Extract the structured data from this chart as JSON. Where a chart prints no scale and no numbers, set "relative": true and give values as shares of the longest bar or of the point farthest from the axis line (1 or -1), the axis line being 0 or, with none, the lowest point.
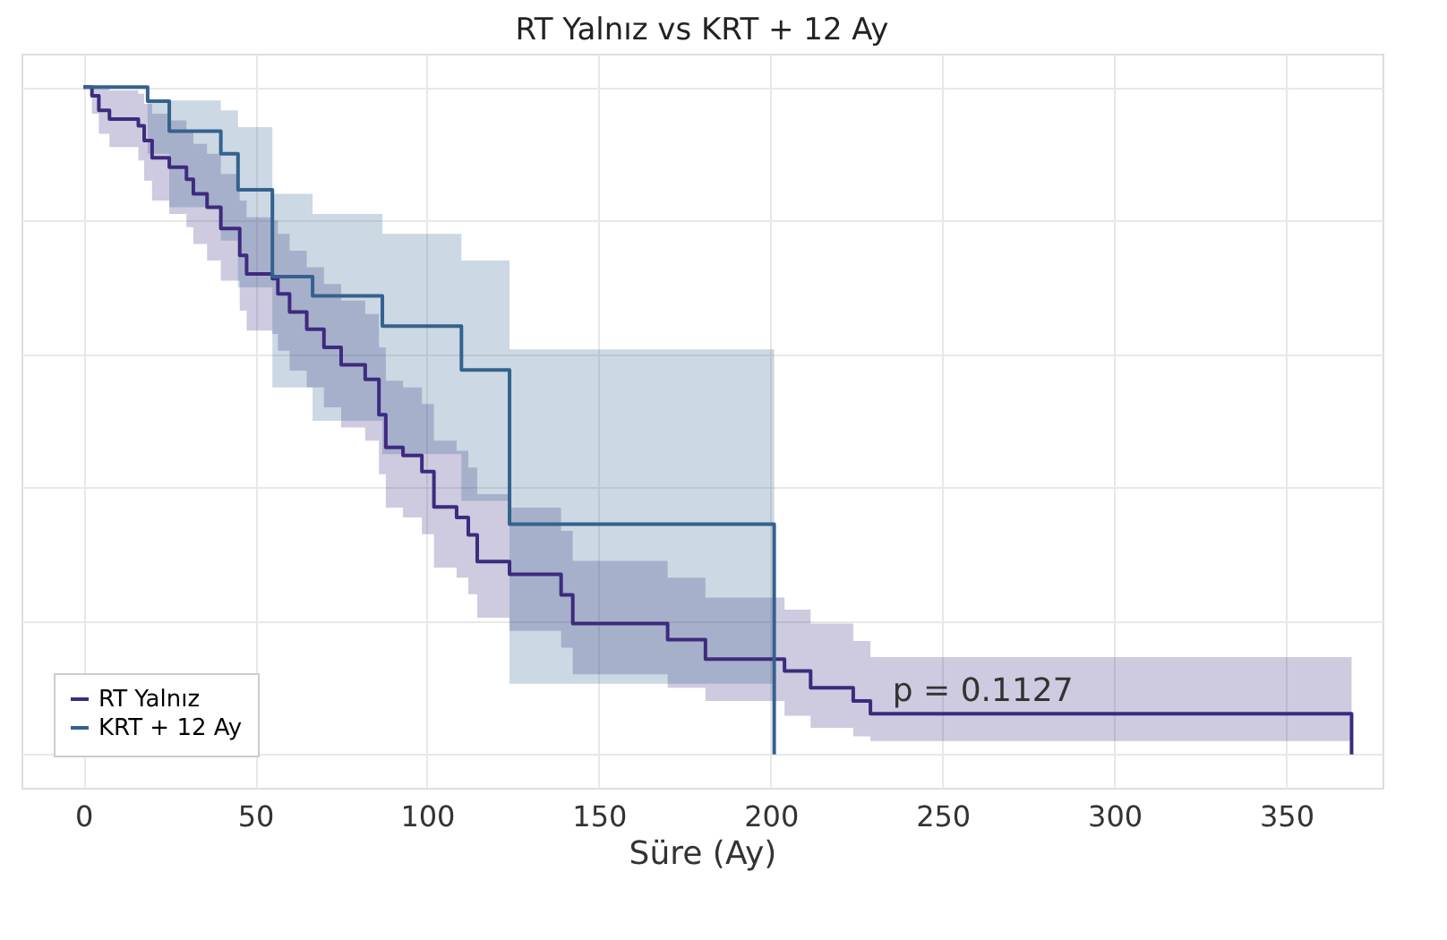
{
  "chart_data": {
    "type": "step",
    "title": "RT Yalnız vs KRT + 12 Ay",
    "xlabel": "Süre (Ay)",
    "relative": true,
    "xlim": [
      -18,
      378
    ],
    "xticks": [
      0,
      50,
      100,
      150,
      200,
      250,
      300,
      350
    ],
    "grid": true,
    "legend": "bottom left",
    "line_style": "solid",
    "marker": "none",
    "annotations": [
      "p = 0.1127"
    ],
    "series": [
      {
        "name": "RT Yalnız",
        "color": "#3d2b7f",
        "x": [
          0,
          2.5,
          4.5,
          7.6,
          16,
          17.7,
          20,
          25,
          30,
          32,
          36,
          40,
          45.5,
          47.5,
          55,
          56.6,
          60,
          65,
          70,
          75,
          82,
          86,
          88,
          93,
          98.5,
          102,
          108.6,
          112,
          114.6,
          124,
          139,
          142.4,
          170,
          181,
          204,
          211.6,
          224,
          229,
          369
        ],
        "values": [
          1,
          0.987,
          0.965,
          0.952,
          0.942,
          0.92,
          0.894,
          0.88,
          0.862,
          0.84,
          0.82,
          0.788,
          0.748,
          0.72,
          0.713,
          0.69,
          0.663,
          0.637,
          0.61,
          0.584,
          0.562,
          0.509,
          0.46,
          0.448,
          0.424,
          0.371,
          0.355,
          0.329,
          0.289,
          0.27,
          0.239,
          0.196,
          0.172,
          0.143,
          0.125,
          0.1,
          0.08,
          0.061,
          0
        ],
        "upper": [
          1,
          1,
          1,
          0.995,
          0.99,
          0.975,
          0.96,
          0.95,
          0.935,
          0.915,
          0.9,
          0.87,
          0.83,
          0.805,
          0.8,
          0.78,
          0.755,
          0.73,
          0.705,
          0.68,
          0.66,
          0.61,
          0.56,
          0.55,
          0.525,
          0.47,
          0.455,
          0.43,
          0.39,
          0.37,
          0.335,
          0.29,
          0.265,
          0.235,
          0.217,
          0.196,
          0.17,
          0.146,
          0.146
        ],
        "lower": [
          1,
          0.96,
          0.93,
          0.91,
          0.89,
          0.86,
          0.83,
          0.81,
          0.79,
          0.765,
          0.74,
          0.71,
          0.665,
          0.635,
          0.63,
          0.605,
          0.575,
          0.55,
          0.52,
          0.49,
          0.47,
          0.42,
          0.37,
          0.355,
          0.33,
          0.28,
          0.265,
          0.24,
          0.205,
          0.185,
          0.16,
          0.12,
          0.1,
          0.08,
          0.058,
          0.04,
          0.027,
          0.02,
          0.02
        ]
      },
      {
        "name": "KRT + 12 Ay",
        "color": "#34628f",
        "x": [
          0,
          18.7,
          25,
          40,
          45,
          55,
          66.7,
          87,
          110,
          124,
          201
        ],
        "values": [
          1,
          0.979,
          0.934,
          0.9,
          0.846,
          0.716,
          0.687,
          0.642,
          0.576,
          0.345,
          0
        ],
        "upper": [
          1,
          0.98,
          0.98,
          0.965,
          0.94,
          0.84,
          0.81,
          0.78,
          0.74,
          0.607,
          0.607
        ],
        "lower": [
          1,
          0.9,
          0.82,
          0.77,
          0.7,
          0.55,
          0.5,
          0.45,
          0.38,
          0.106,
          0.106
        ]
      }
    ]
  }
}
